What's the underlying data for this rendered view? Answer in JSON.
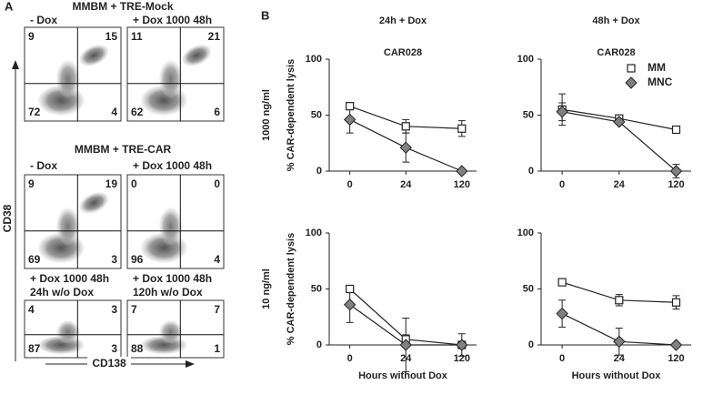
{
  "figure_labels": [
    "A",
    "B"
  ],
  "panel_a": {
    "axis_labels": {
      "y": "CD38",
      "x": "CD138"
    },
    "groups": [
      {
        "title": "MMBM + TRE-Mock",
        "plots": [
          {
            "label": [
              "- Dox"
            ],
            "quadrants": [
              9,
              15,
              72,
              4
            ]
          },
          {
            "label": [
              "+ Dox 1000 48h"
            ],
            "quadrants": [
              11,
              21,
              62,
              6
            ]
          }
        ]
      },
      {
        "title": "MMBM + TRE-CAR",
        "plots": [
          {
            "label": [
              "- Dox"
            ],
            "quadrants": [
              9,
              19,
              69,
              3
            ]
          },
          {
            "label": [
              "+ Dox 1000 48h"
            ],
            "quadrants": [
              0,
              0,
              96,
              4
            ]
          }
        ]
      },
      {
        "plots": [
          {
            "label": [
              "+ Dox 1000 48h",
              "24h w/o Dox"
            ],
            "quadrants": [
              4,
              3,
              87,
              3
            ]
          },
          {
            "label": [
              "+ Dox 1000 48h",
              "120h w/o Dox"
            ],
            "quadrants": [
              7,
              7,
              88,
              1
            ]
          }
        ]
      }
    ]
  },
  "chart_data": [
    {
      "type": "line",
      "title": "24h + Dox",
      "subtitle": "CAR028",
      "ylabel": "% CAR-dependent lysis",
      "row_label": "1000 ng/ml",
      "categories": [
        0,
        24,
        120
      ],
      "ylim": [
        0,
        100
      ],
      "yticks": [
        0,
        50,
        100
      ],
      "series": [
        {
          "color": "#ffffff",
          "marker": "square",
          "values": [
            58,
            40,
            38
          ],
          "errors": [
            2,
            6,
            7
          ]
        },
        {
          "color": "#808080",
          "marker": "diamond",
          "values": [
            46,
            21,
            0
          ],
          "errors": [
            12,
            13,
            0
          ]
        }
      ]
    },
    {
      "type": "line",
      "title": "48h + Dox",
      "subtitle": "CAR028",
      "legend": "upper right",
      "categories": [
        0,
        24,
        120
      ],
      "ylim": [
        0,
        100
      ],
      "yticks": [
        0,
        50,
        100
      ],
      "series": [
        {
          "name": "MM",
          "color": "#ffffff",
          "marker": "square",
          "values": [
            55,
            47,
            37
          ],
          "errors": [
            14,
            2,
            2
          ]
        },
        {
          "name": "MNC",
          "color": "#808080",
          "marker": "diamond",
          "values": [
            53,
            44,
            0
          ],
          "errors": [
            8,
            2,
            6
          ]
        }
      ]
    },
    {
      "type": "line",
      "ylabel": "% CAR-dependent lysis",
      "row_label": "10 ng/ml",
      "xlabel": "Hours without Dox",
      "categories": [
        0,
        24,
        120
      ],
      "ylim": [
        0,
        100
      ],
      "yticks": [
        0,
        50,
        100
      ],
      "series": [
        {
          "color": "#ffffff",
          "marker": "square",
          "values": [
            50,
            5,
            0
          ],
          "errors": [
            2,
            4,
            10
          ]
        },
        {
          "color": "#808080",
          "marker": "diamond",
          "values": [
            36,
            0,
            0
          ],
          "errors": [
            16,
            24,
            0
          ]
        }
      ]
    },
    {
      "type": "line",
      "xlabel": "Hours without Dox",
      "categories": [
        0,
        24,
        120
      ],
      "ylim": [
        0,
        100
      ],
      "yticks": [
        0,
        50,
        100
      ],
      "series": [
        {
          "color": "#ffffff",
          "marker": "square",
          "values": [
            56,
            40,
            38
          ],
          "errors": [
            2,
            5,
            6
          ]
        },
        {
          "color": "#808080",
          "marker": "diamond",
          "values": [
            28,
            3,
            0
          ],
          "errors": [
            12,
            12,
            0
          ]
        }
      ]
    }
  ]
}
